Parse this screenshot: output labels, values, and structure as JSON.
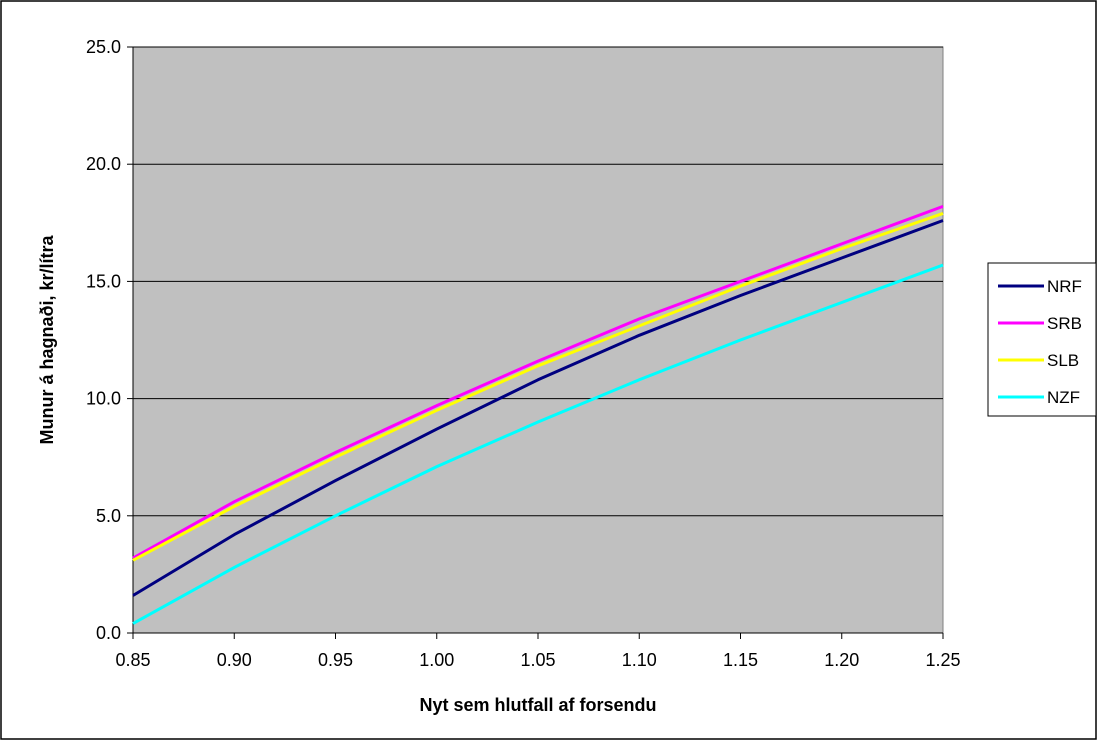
{
  "chart_data": {
    "type": "line",
    "title": "",
    "xlabel": "Nyt sem hlutfall af forsendu",
    "ylabel": "Munur á hagnaði, kr/lítra",
    "x": [
      0.85,
      0.9,
      0.95,
      1.0,
      1.05,
      1.1,
      1.15,
      1.2,
      1.25
    ],
    "x_tick_labels": [
      "0.85",
      "0.90",
      "0.95",
      "1.00",
      "1.05",
      "1.10",
      "1.15",
      "1.20",
      "1.25"
    ],
    "ylim": [
      0,
      25
    ],
    "y_ticks": [
      0,
      5,
      10,
      15,
      20,
      25
    ],
    "y_tick_labels": [
      "0.0",
      "5.0",
      "10.0",
      "15.0",
      "20.0",
      "25.0"
    ],
    "grid": "horizontal",
    "plot_background": "#c0c0c0",
    "legend_position": "right",
    "series": [
      {
        "name": "NRF",
        "color": "#000080",
        "values": [
          1.6,
          4.2,
          6.5,
          8.7,
          10.8,
          12.7,
          14.4,
          16.0,
          17.6
        ]
      },
      {
        "name": "SRB",
        "color": "#ff00ff",
        "values": [
          3.2,
          5.6,
          7.7,
          9.7,
          11.6,
          13.4,
          15.0,
          16.6,
          18.2
        ]
      },
      {
        "name": "SLB",
        "color": "#ffff00",
        "values": [
          3.1,
          5.4,
          7.5,
          9.5,
          11.4,
          13.1,
          14.8,
          16.4,
          17.9
        ]
      },
      {
        "name": "NZF",
        "color": "#00ffff",
        "values": [
          0.4,
          2.8,
          5.0,
          7.1,
          9.0,
          10.8,
          12.5,
          14.1,
          15.7
        ]
      }
    ]
  }
}
